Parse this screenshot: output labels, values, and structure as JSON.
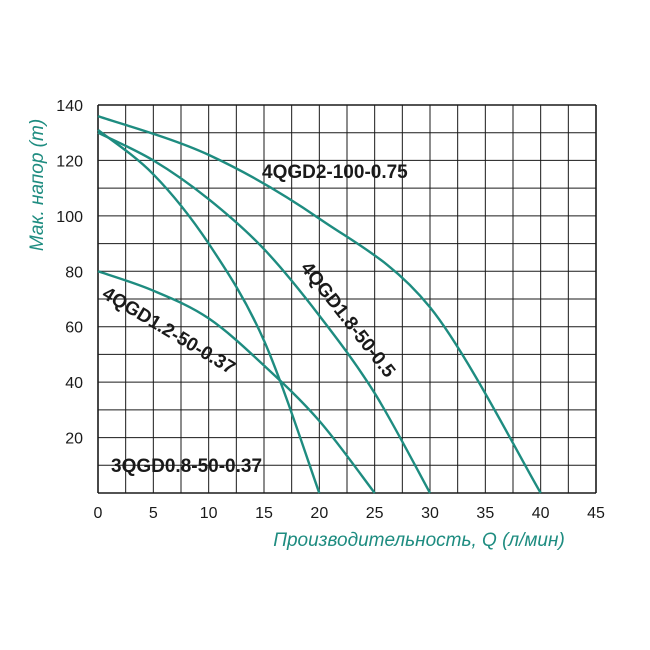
{
  "chart_data": {
    "type": "line",
    "title": "",
    "xlabel": "Производительность, Q (л/мин)",
    "ylabel": "Мак. напор (m)",
    "xlim": [
      0,
      45
    ],
    "ylim": [
      0,
      140
    ],
    "x_ticks": [
      "0",
      "5",
      "10",
      "15",
      "20",
      "25",
      "30",
      "35",
      "40",
      "45"
    ],
    "y_ticks": [
      "20",
      "40",
      "60",
      "80",
      "100",
      "120",
      "140"
    ],
    "grid": true,
    "colors": {
      "curve": "#1e8c80",
      "grid": "#1a1a1a",
      "axis_title": "#1e8c80"
    },
    "series": [
      {
        "name": "4QGD2-100-0.75",
        "x": [
          0,
          10,
          20,
          30,
          40
        ],
        "y": [
          136,
          122,
          99,
          67,
          0
        ]
      },
      {
        "name": "4QGD1.8-50-0.5",
        "x": [
          0,
          5,
          10,
          15,
          20,
          25,
          30
        ],
        "y": [
          130,
          120,
          106,
          88,
          64,
          36,
          0
        ]
      },
      {
        "name": "4QGD1.2-50-0.37",
        "x": [
          0,
          5,
          10,
          15,
          20,
          25
        ],
        "y": [
          80,
          73,
          63,
          46,
          26,
          0
        ]
      },
      {
        "name": "3QGD0.8-50-0.37",
        "x": [
          0,
          5,
          10,
          15,
          20
        ],
        "y": [
          131,
          115,
          90,
          55,
          0
        ]
      }
    ]
  }
}
